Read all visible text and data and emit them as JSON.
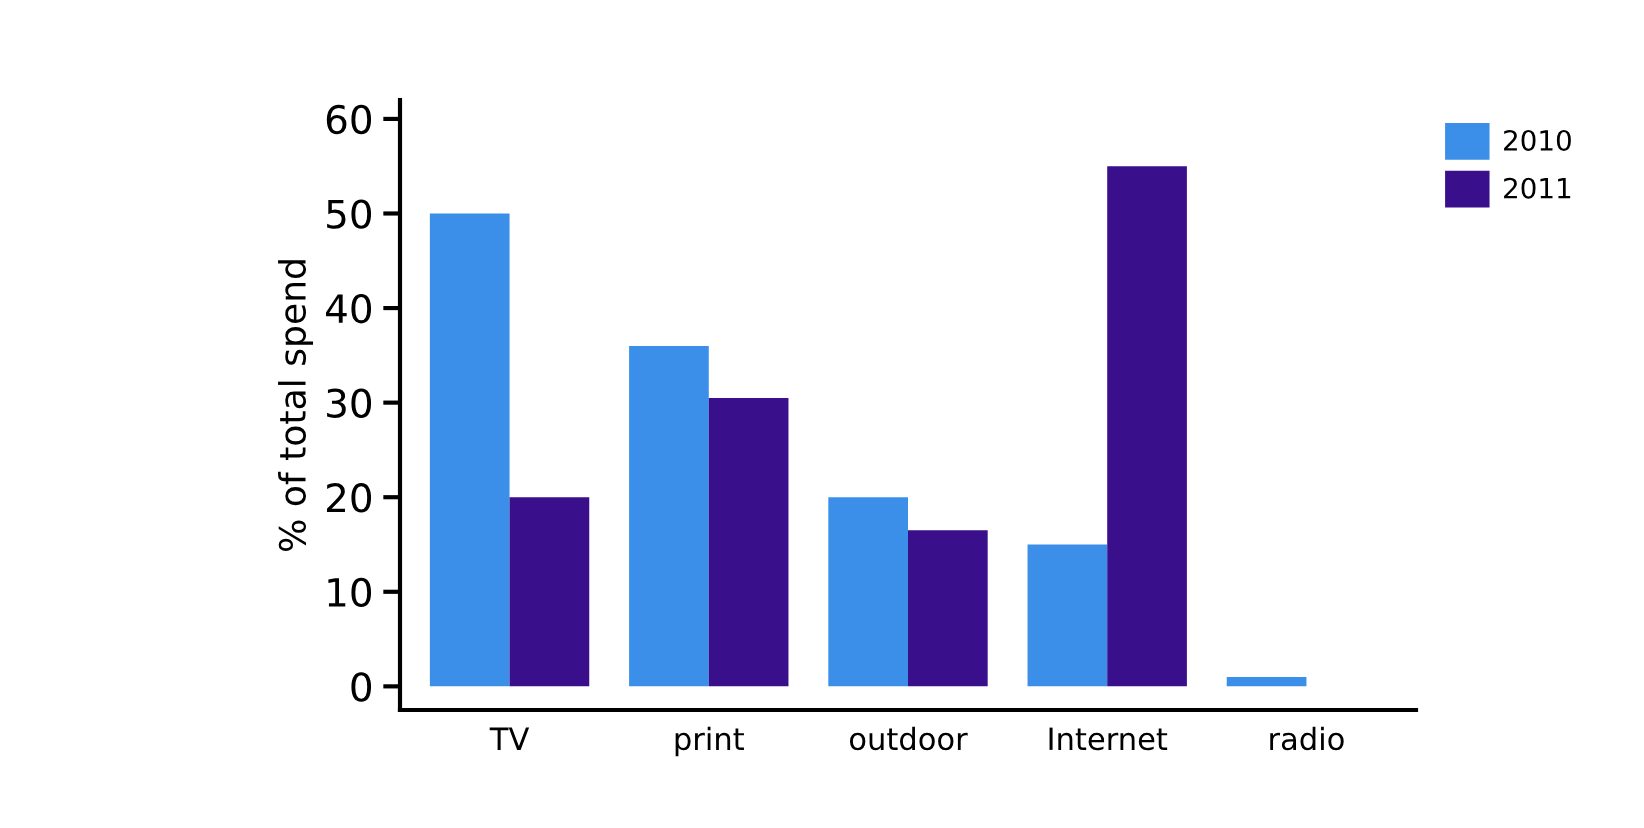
{
  "chart_data": {
    "type": "bar",
    "ylabel": "% of total spend",
    "categories": [
      "TV",
      "print",
      "outdoor",
      "Internet",
      "radio"
    ],
    "series": [
      {
        "name": "2010",
        "color": "#3b8fe8",
        "values": [
          50,
          36,
          20,
          15,
          1
        ]
      },
      {
        "name": "2011",
        "color": "#3a0f8c",
        "values": [
          20,
          30.5,
          16.5,
          55,
          0
        ]
      }
    ],
    "ylim": [
      -2.5,
      62
    ],
    "yticks": [
      0,
      10,
      20,
      30,
      40,
      50,
      60
    ],
    "grid": false,
    "legend": "top right"
  }
}
